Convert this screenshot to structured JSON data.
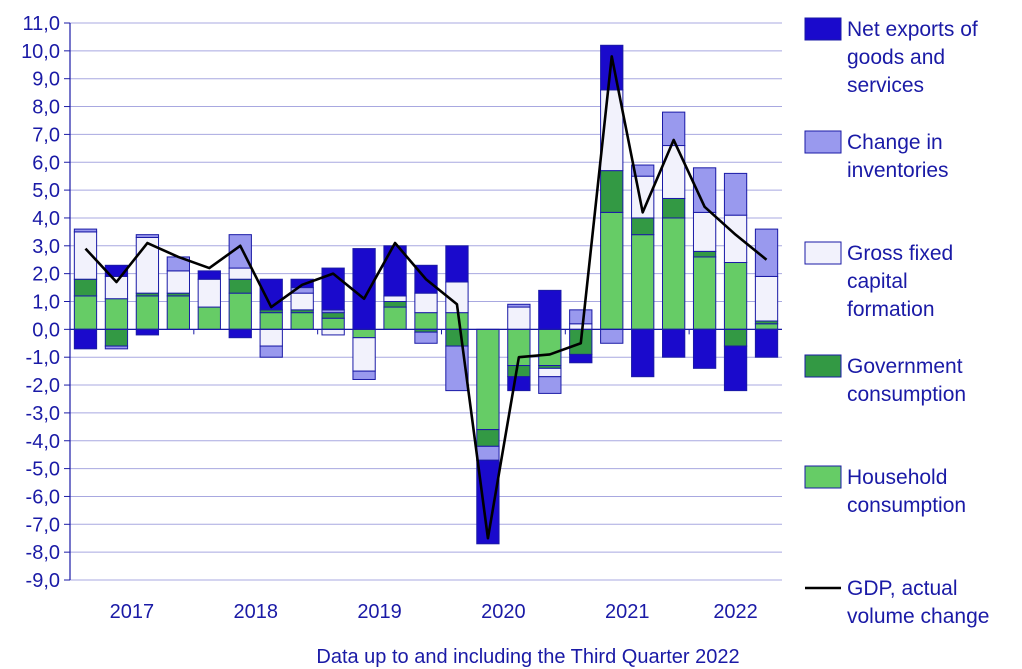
{
  "chart_data": {
    "type": "bar",
    "stacked": true,
    "x": [
      "2017Q1",
      "2017Q2",
      "2017Q3",
      "2017Q4",
      "2018Q1",
      "2018Q2",
      "2018Q3",
      "2018Q4",
      "2019Q1",
      "2019Q2",
      "2019Q3",
      "2019Q4",
      "2020Q1",
      "2020Q2",
      "2020Q3",
      "2020Q4",
      "2021Q1",
      "2021Q2",
      "2021Q3",
      "2021Q4",
      "2022Q1",
      "2022Q2",
      "2022Q3"
    ],
    "categories": [
      "2017",
      "2018",
      "2019",
      "2020",
      "2021",
      "2022"
    ],
    "footnote": "Data up to and including the Third Quarter 2022",
    "ylim": [
      -9,
      11
    ],
    "yticks": [
      "11,0",
      "10,0",
      "9,0",
      "8,0",
      "7,0",
      "6,0",
      "5,0",
      "4,0",
      "3,0",
      "2,0",
      "1,0",
      "0,0",
      "-1,0",
      "-2,0",
      "-3,0",
      "-4,0",
      "-5,0",
      "-6,0",
      "-7,0",
      "-8,0",
      "-9,0"
    ],
    "series": [
      {
        "name": "Household consumption",
        "color": "#66cc66",
        "values": [
          1.2,
          1.1,
          1.2,
          1.2,
          0.8,
          1.3,
          0.6,
          0.6,
          0.4,
          -0.3,
          0.8,
          0.6,
          0.6,
          -3.6,
          -1.3,
          -1.3,
          0.0,
          4.2,
          3.4,
          4.0,
          2.6,
          2.4,
          0.2
        ]
      },
      {
        "name": "Government consumption",
        "color": "#339944",
        "values": [
          0.6,
          -0.6,
          0.1,
          0.1,
          0.0,
          0.5,
          0.1,
          0.1,
          0.2,
          0.0,
          0.2,
          -0.1,
          -0.6,
          -0.6,
          -0.4,
          -0.1,
          -0.9,
          1.5,
          0.6,
          0.7,
          0.2,
          -0.6,
          0.1
        ]
      },
      {
        "name": "Gross fixed capital formation",
        "color": "#f2f2fc",
        "values": [
          1.7,
          0.8,
          2.0,
          0.8,
          1.0,
          0.4,
          -0.6,
          0.6,
          -0.2,
          -1.2,
          0.2,
          0.7,
          1.1,
          0.0,
          0.8,
          -0.3,
          0.2,
          2.9,
          1.5,
          1.9,
          1.4,
          1.7,
          1.6
        ]
      },
      {
        "name": "Change in inventories",
        "color": "#9999ee",
        "values": [
          0.1,
          -0.1,
          0.1,
          0.5,
          0.0,
          1.2,
          -0.4,
          0.2,
          0.1,
          -0.3,
          0.0,
          -0.4,
          -1.6,
          -0.5,
          0.1,
          -0.6,
          0.5,
          -0.5,
          0.4,
          1.2,
          1.6,
          1.5,
          1.7
        ]
      },
      {
        "name": "Net exports of goods and services",
        "color": "#1a0acc",
        "values": [
          -0.7,
          0.4,
          -0.2,
          0.0,
          0.3,
          -0.3,
          1.1,
          0.3,
          1.5,
          2.9,
          1.8,
          1.0,
          1.3,
          -3.0,
          -0.5,
          1.4,
          -0.3,
          1.6,
          -1.7,
          -1.0,
          -1.4,
          -1.6,
          -1.0
        ]
      }
    ],
    "line": {
      "name": "GDP, actual volume change",
      "values": [
        2.9,
        1.7,
        3.1,
        2.6,
        2.2,
        3.0,
        0.8,
        1.6,
        2.0,
        1.1,
        3.1,
        1.8,
        0.9,
        -7.5,
        -1.0,
        -0.9,
        -0.5,
        9.8,
        4.2,
        6.8,
        4.4,
        3.4,
        2.5
      ]
    },
    "legend": [
      {
        "key": "net_exports",
        "lines": [
          "Net exports of",
          "goods and",
          "services"
        ],
        "color": "#1a0acc",
        "kind": "box"
      },
      {
        "key": "inventories",
        "lines": [
          "Change in",
          "inventories"
        ],
        "color": "#9999ee",
        "kind": "box"
      },
      {
        "key": "gfcf",
        "lines": [
          "Gross fixed",
          "capital",
          "formation"
        ],
        "color": "#f2f2fc",
        "kind": "box"
      },
      {
        "key": "government",
        "lines": [
          "Government",
          "consumption"
        ],
        "color": "#339944",
        "kind": "box"
      },
      {
        "key": "household",
        "lines": [
          "Household",
          "consumption"
        ],
        "color": "#66cc66",
        "kind": "box"
      },
      {
        "key": "gdp",
        "lines": [
          "GDP, actual",
          "volume change"
        ],
        "color": "#000000",
        "kind": "line"
      }
    ],
    "legend_position": "right",
    "grid": true,
    "colors": {
      "axis": "#1a1aa6",
      "grid": "#a8a8e0",
      "text": "#1a1aa6",
      "bar_outline": "#1a1aa6",
      "line": "#000000"
    }
  }
}
